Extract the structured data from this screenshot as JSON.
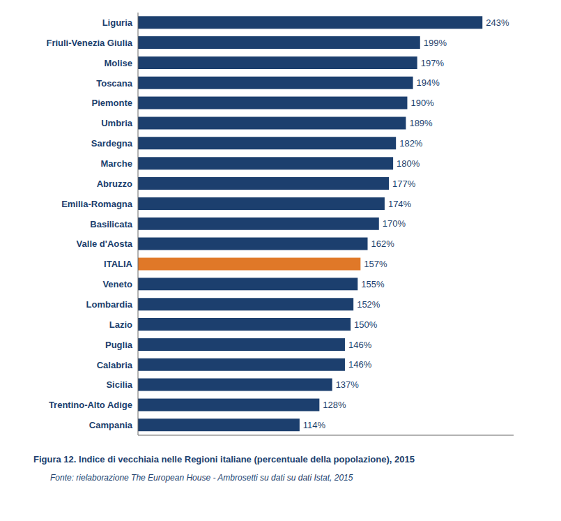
{
  "chart_data": {
    "type": "bar",
    "orientation": "horizontal",
    "title": "Figura 12. Indice di vecchiaia nelle Regioni italiane (percentuale della popolazione), 2015",
    "annotations": [
      "Fonte: rielaborazione The European House - Ambrosetti su dati su dati Istat, 2015"
    ],
    "categories": [
      "Liguria",
      "Friuli-Venezia Giulia",
      "Molise",
      "Toscana",
      "Piemonte",
      "Umbria",
      "Sardegna",
      "Marche",
      "Abruzzo",
      "Emilia-Romagna",
      "Basilicata",
      "Valle d'Aosta",
      "ITALIA",
      "Veneto",
      "Lombardia",
      "Lazio",
      "Puglia",
      "Calabria",
      "Sicilia",
      "Trentino-Alto Adige",
      "Campania"
    ],
    "values": [
      243,
      199,
      197,
      194,
      190,
      189,
      182,
      180,
      177,
      174,
      170,
      162,
      157,
      155,
      152,
      150,
      146,
      146,
      137,
      128,
      114
    ],
    "value_labels": [
      "243%",
      "199%",
      "197%",
      "194%",
      "190%",
      "189%",
      "182%",
      "180%",
      "177%",
      "174%",
      "170%",
      "162%",
      "157%",
      "155%",
      "152%",
      "150%",
      "146%",
      "146%",
      "137%",
      "128%",
      "114%"
    ],
    "colors": [
      "#1c3f6e",
      "#1c3f6e",
      "#1c3f6e",
      "#1c3f6e",
      "#1c3f6e",
      "#1c3f6e",
      "#1c3f6e",
      "#1c3f6e",
      "#1c3f6e",
      "#1c3f6e",
      "#1c3f6e",
      "#1c3f6e",
      "#e07828",
      "#1c3f6e",
      "#1c3f6e",
      "#1c3f6e",
      "#1c3f6e",
      "#1c3f6e",
      "#1c3f6e",
      "#1c3f6e",
      "#1c3f6e"
    ],
    "xlim": [
      0,
      265
    ],
    "data_labels": true,
    "tick_labels": "y",
    "grid": false
  }
}
